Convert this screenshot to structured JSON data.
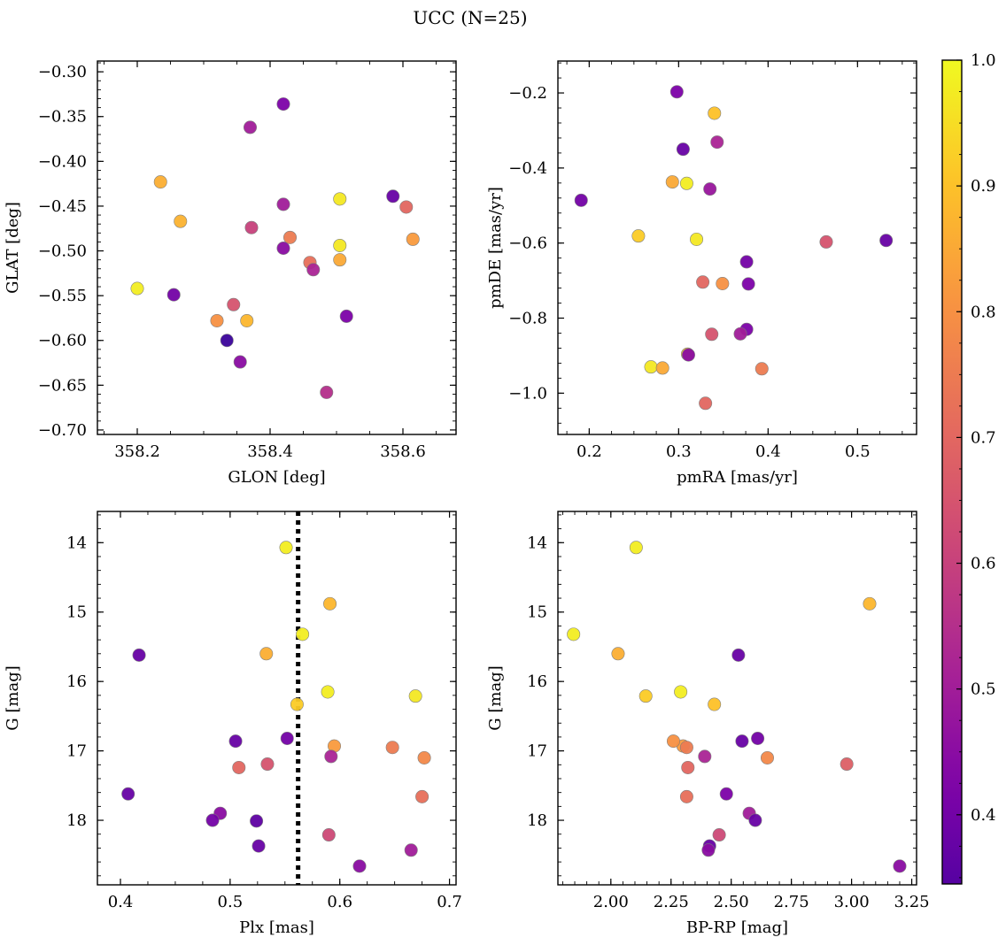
{
  "title": "UCC (N=25)",
  "colorbar": {
    "range": [
      0.345,
      1.0
    ],
    "ticks": [
      0.4,
      0.5,
      0.6,
      0.7,
      0.8,
      0.9,
      1.0
    ],
    "tick_labels": [
      "0.4",
      "0.5",
      "0.6",
      "0.7",
      "0.8",
      "0.9",
      "1.0"
    ],
    "colormap": "plasma"
  },
  "chart_data": [
    {
      "type": "scatter",
      "name": "glon-glat",
      "xlabel": "GLON [deg]",
      "ylabel": "GLAT [deg]",
      "xlim": [
        358.14,
        358.68
      ],
      "ylim": [
        -0.705,
        -0.288
      ],
      "xticks": [
        358.2,
        358.4,
        358.6
      ],
      "xtick_labels": [
        "358.2",
        "358.4",
        "358.6"
      ],
      "yticks": [
        -0.7,
        -0.65,
        -0.6,
        -0.55,
        -0.5,
        -0.45,
        -0.4,
        -0.35,
        -0.3
      ],
      "ytick_labels": [
        "−0.70",
        "−0.65",
        "−0.60",
        "−0.55",
        "−0.50",
        "−0.45",
        "−0.40",
        "−0.35",
        "−0.30"
      ],
      "x": [
        358.42,
        358.37,
        358.235,
        358.265,
        358.42,
        358.505,
        358.585,
        358.605,
        358.372,
        358.43,
        358.42,
        358.505,
        358.615,
        358.46,
        358.505,
        358.465,
        358.2,
        358.255,
        358.345,
        358.32,
        358.365,
        358.515,
        358.355,
        358.485,
        358.335
      ],
      "y": [
        -0.336,
        -0.362,
        -0.423,
        -0.467,
        -0.448,
        -0.442,
        -0.439,
        -0.451,
        -0.474,
        -0.485,
        -0.497,
        -0.494,
        -0.487,
        -0.513,
        -0.51,
        -0.521,
        -0.542,
        -0.549,
        -0.56,
        -0.578,
        -0.578,
        -0.573,
        -0.624,
        -0.658,
        -0.6
      ],
      "c": [
        0.42,
        0.5,
        0.86,
        0.87,
        0.5,
        0.97,
        0.38,
        0.7,
        0.6,
        0.75,
        0.45,
        0.97,
        0.82,
        0.72,
        0.85,
        0.52,
        0.98,
        0.4,
        0.65,
        0.8,
        0.88,
        0.42,
        0.45,
        0.55,
        0.3
      ]
    },
    {
      "type": "scatter",
      "name": "pmra-pmde",
      "xlabel": "pmRA [mas/yr]",
      "ylabel": "pmDE [mas/yr]",
      "xlim": [
        0.165,
        0.566
      ],
      "ylim": [
        -1.11,
        -0.115
      ],
      "xticks": [
        0.2,
        0.3,
        0.4,
        0.5
      ],
      "xtick_labels": [
        "0.2",
        "0.3",
        "0.4",
        "0.5"
      ],
      "yticks": [
        -1.0,
        -0.8,
        -0.6,
        -0.4,
        -0.2
      ],
      "ytick_labels": [
        "−1.0",
        "−0.8",
        "−0.6",
        "−0.4",
        "−0.2"
      ],
      "x": [
        0.298,
        0.34,
        0.305,
        0.343,
        0.293,
        0.309,
        0.191,
        0.335,
        0.255,
        0.32,
        0.465,
        0.532,
        0.376,
        0.327,
        0.349,
        0.378,
        0.376,
        0.369,
        0.337,
        0.31,
        0.311,
        0.269,
        0.282,
        0.393,
        0.33
      ],
      "y": [
        -0.197,
        -0.254,
        -0.35,
        -0.331,
        -0.437,
        -0.441,
        -0.486,
        -0.456,
        -0.581,
        -0.59,
        -0.597,
        -0.593,
        -0.65,
        -0.704,
        -0.708,
        -0.709,
        -0.83,
        -0.842,
        -0.843,
        -0.896,
        -0.898,
        -0.93,
        -0.933,
        -0.935,
        -1.027
      ],
      "c": [
        0.42,
        0.9,
        0.38,
        0.52,
        0.85,
        0.98,
        0.4,
        0.48,
        0.92,
        0.97,
        0.65,
        0.38,
        0.4,
        0.7,
        0.8,
        0.42,
        0.42,
        0.5,
        0.65,
        0.9,
        0.45,
        0.97,
        0.85,
        0.75,
        0.7
      ]
    },
    {
      "type": "scatter",
      "name": "plx-g",
      "xlabel": "Plx [mas]",
      "ylabel": "G [mag]",
      "xlim": [
        0.379,
        0.706
      ],
      "ylim": [
        18.93,
        13.55
      ],
      "y_inverted": true,
      "xticks": [
        0.4,
        0.5,
        0.6,
        0.7
      ],
      "xtick_labels": [
        "0.4",
        "0.5",
        "0.6",
        "0.7"
      ],
      "yticks": [
        14,
        15,
        16,
        17,
        18
      ],
      "ytick_labels": [
        "14",
        "15",
        "16",
        "17",
        "18"
      ],
      "vline": 0.562,
      "x": [
        0.551,
        0.591,
        0.566,
        0.417,
        0.533,
        0.589,
        0.669,
        0.561,
        0.552,
        0.505,
        0.595,
        0.648,
        0.592,
        0.534,
        0.508,
        0.677,
        0.407,
        0.675,
        0.491,
        0.484,
        0.524,
        0.59,
        0.526,
        0.665,
        0.618
      ],
      "y": [
        14.07,
        14.88,
        15.32,
        15.62,
        15.6,
        16.15,
        16.21,
        16.33,
        16.82,
        16.86,
        16.93,
        16.95,
        17.08,
        17.19,
        17.24,
        17.1,
        17.62,
        17.66,
        17.9,
        18.0,
        18.01,
        18.21,
        18.37,
        18.43,
        18.66
      ],
      "c": [
        0.98,
        0.88,
        0.98,
        0.38,
        0.86,
        0.98,
        0.97,
        0.92,
        0.4,
        0.38,
        0.82,
        0.75,
        0.52,
        0.65,
        0.7,
        0.78,
        0.38,
        0.72,
        0.45,
        0.4,
        0.36,
        0.62,
        0.38,
        0.5,
        0.45
      ]
    },
    {
      "type": "scatter",
      "name": "bprp-g",
      "xlabel": "BP-RP [mag]",
      "ylabel": "G [mag]",
      "xlim": [
        1.78,
        3.27
      ],
      "ylim": [
        18.93,
        13.55
      ],
      "y_inverted": true,
      "xticks": [
        2.0,
        2.25,
        2.5,
        2.75,
        3.0,
        3.25
      ],
      "xtick_labels": [
        "2.00",
        "2.25",
        "2.50",
        "2.75",
        "3.00",
        "3.25"
      ],
      "yticks": [
        14,
        15,
        16,
        17,
        18
      ],
      "ytick_labels": [
        "14",
        "15",
        "16",
        "17",
        "18"
      ],
      "x": [
        2.105,
        3.075,
        1.845,
        2.03,
        2.145,
        2.29,
        2.43,
        2.53,
        2.545,
        2.61,
        2.3,
        2.315,
        2.39,
        2.65,
        2.98,
        2.32,
        2.48,
        2.315,
        2.575,
        2.6,
        2.45,
        2.41,
        2.405,
        3.2,
        2.26
      ],
      "y": [
        14.07,
        14.88,
        15.32,
        15.6,
        16.21,
        16.15,
        16.33,
        15.62,
        16.86,
        16.82,
        16.93,
        16.95,
        17.08,
        17.1,
        17.19,
        17.24,
        17.62,
        17.66,
        17.9,
        18.0,
        18.21,
        18.37,
        18.43,
        18.66,
        16.86
      ],
      "c": [
        0.98,
        0.88,
        0.98,
        0.86,
        0.92,
        0.98,
        0.9,
        0.38,
        0.38,
        0.4,
        0.82,
        0.75,
        0.52,
        0.78,
        0.68,
        0.7,
        0.42,
        0.72,
        0.5,
        0.38,
        0.62,
        0.38,
        0.45,
        0.45,
        0.8
      ]
    }
  ]
}
